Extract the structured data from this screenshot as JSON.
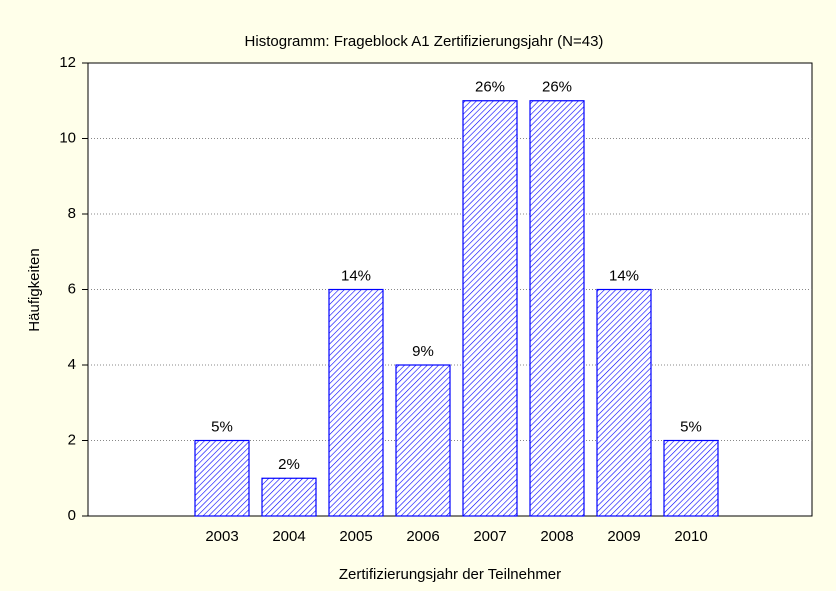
{
  "chart_data": {
    "type": "bar",
    "title": "Histogramm: Frageblock A1 Zertifizierungsjahr (N=43)",
    "x_label": "Zertifizierungsjahr der Teilnehmer",
    "y_label": "Häufigkeiten",
    "categories": [
      "2003",
      "2004",
      "2005",
      "2006",
      "2007",
      "2008",
      "2009",
      "2010"
    ],
    "values": [
      2,
      1,
      6,
      4,
      11,
      11,
      6,
      2
    ],
    "annotations": [
      "5%",
      "2%",
      "14%",
      "9%",
      "26%",
      "26%",
      "14%",
      "5%"
    ],
    "color": "#0000ff",
    "ylim": [
      0,
      12
    ],
    "yticks": [
      0,
      2,
      4,
      6,
      8,
      10,
      12
    ],
    "grid": true
  }
}
